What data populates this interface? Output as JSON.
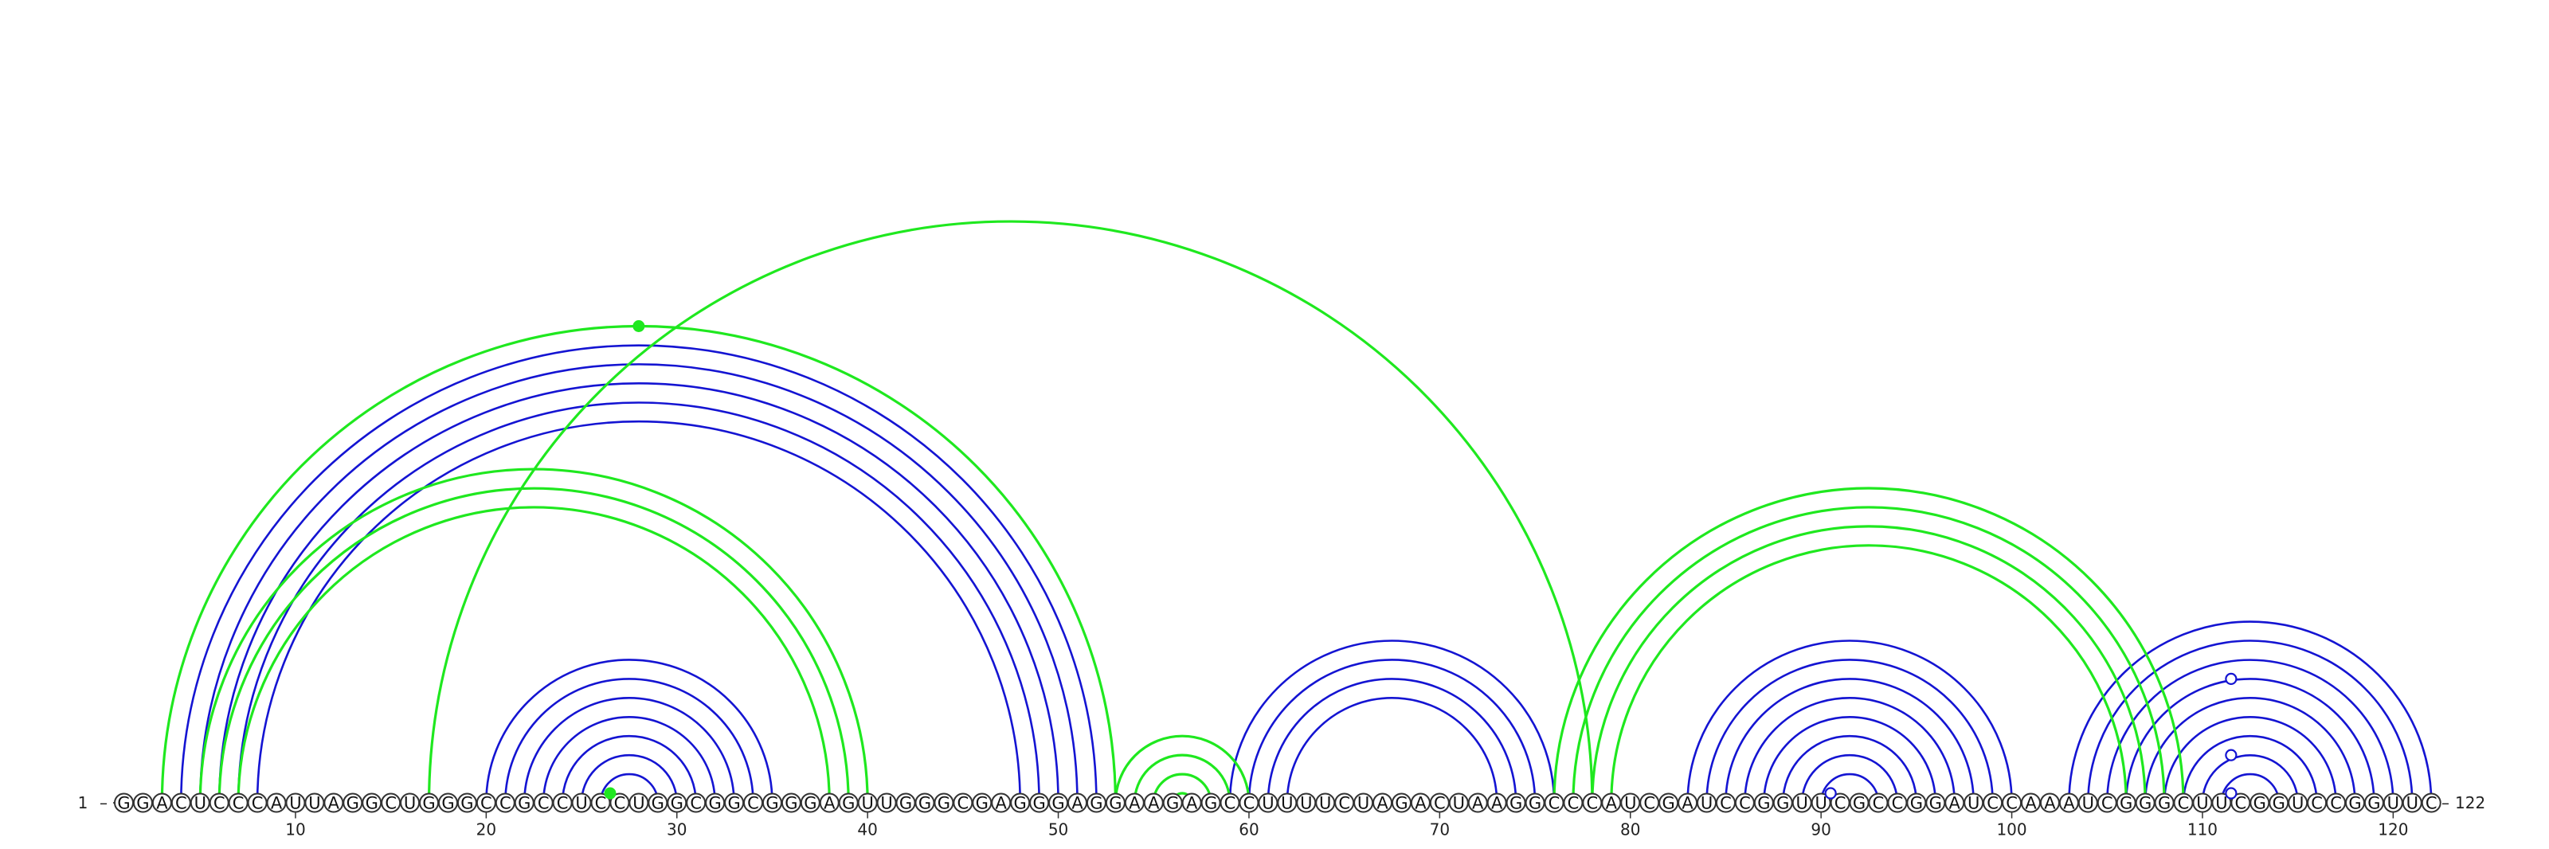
{
  "sequence": "GGACUCCCAUUAGGCUGGGCCGCCUCCUGGCGGCGGGAGUUGGGCGAGGGAGGAAGAGCCUUUUCUAGACUAAGGCCCAUCGAUCCGGUUCGCCGGAUCCAAAUCGGGCUUCGGUCCGGUUC",
  "start_label": "1",
  "end_label": "122",
  "ticks": [
    10,
    20,
    30,
    40,
    50,
    60,
    70,
    80,
    90,
    100,
    110,
    120
  ],
  "colors": {
    "structure_a": "#1414d2",
    "structure_b": "#1fe81f",
    "backbone": "#555555"
  },
  "arcs_blue": [
    [
      4,
      52
    ],
    [
      5,
      51
    ],
    [
      6,
      50
    ],
    [
      7,
      49
    ],
    [
      8,
      48
    ],
    [
      20,
      35
    ],
    [
      21,
      34
    ],
    [
      22,
      33
    ],
    [
      23,
      32
    ],
    [
      24,
      31
    ],
    [
      25,
      30
    ],
    [
      26,
      29
    ],
    [
      59,
      76
    ],
    [
      60,
      75
    ],
    [
      61,
      74
    ],
    [
      62,
      73
    ],
    [
      83,
      100
    ],
    [
      84,
      99
    ],
    [
      85,
      98
    ],
    [
      86,
      97
    ],
    [
      87,
      96
    ],
    [
      88,
      95
    ],
    [
      89,
      94
    ],
    [
      90,
      93
    ],
    [
      103,
      122
    ],
    [
      104,
      121
    ],
    [
      105,
      120
    ],
    [
      106,
      119
    ],
    [
      107,
      118
    ],
    [
      108,
      117
    ],
    [
      109,
      116
    ],
    [
      110,
      115
    ],
    [
      111,
      114
    ]
  ],
  "arcs_green": [
    [
      3,
      53
    ],
    [
      5,
      40
    ],
    [
      6,
      39
    ],
    [
      7,
      38
    ],
    [
      17,
      78
    ],
    [
      53,
      60
    ],
    [
      54,
      59
    ],
    [
      55,
      58
    ],
    [
      56,
      57
    ],
    [
      76,
      109
    ],
    [
      77,
      108
    ],
    [
      78,
      107
    ],
    [
      79,
      106
    ],
    [
      26,
      27
    ]
  ],
  "markers": [
    {
      "type": "dot",
      "color": "#1fe81f",
      "pair": [
        3,
        53
      ]
    },
    {
      "type": "dot",
      "color": "#1fe81f",
      "pair": [
        26,
        27
      ]
    },
    {
      "type": "ring",
      "color": "#1414d2",
      "pair": [
        90,
        91
      ]
    },
    {
      "type": "ring",
      "color": "#1414d2",
      "pair": [
        111,
        112
      ]
    },
    {
      "type": "ring",
      "color": "#1414d2",
      "pair": [
        109,
        114
      ]
    },
    {
      "type": "ring",
      "color": "#1414d2",
      "pair": [
        105,
        118
      ]
    }
  ]
}
